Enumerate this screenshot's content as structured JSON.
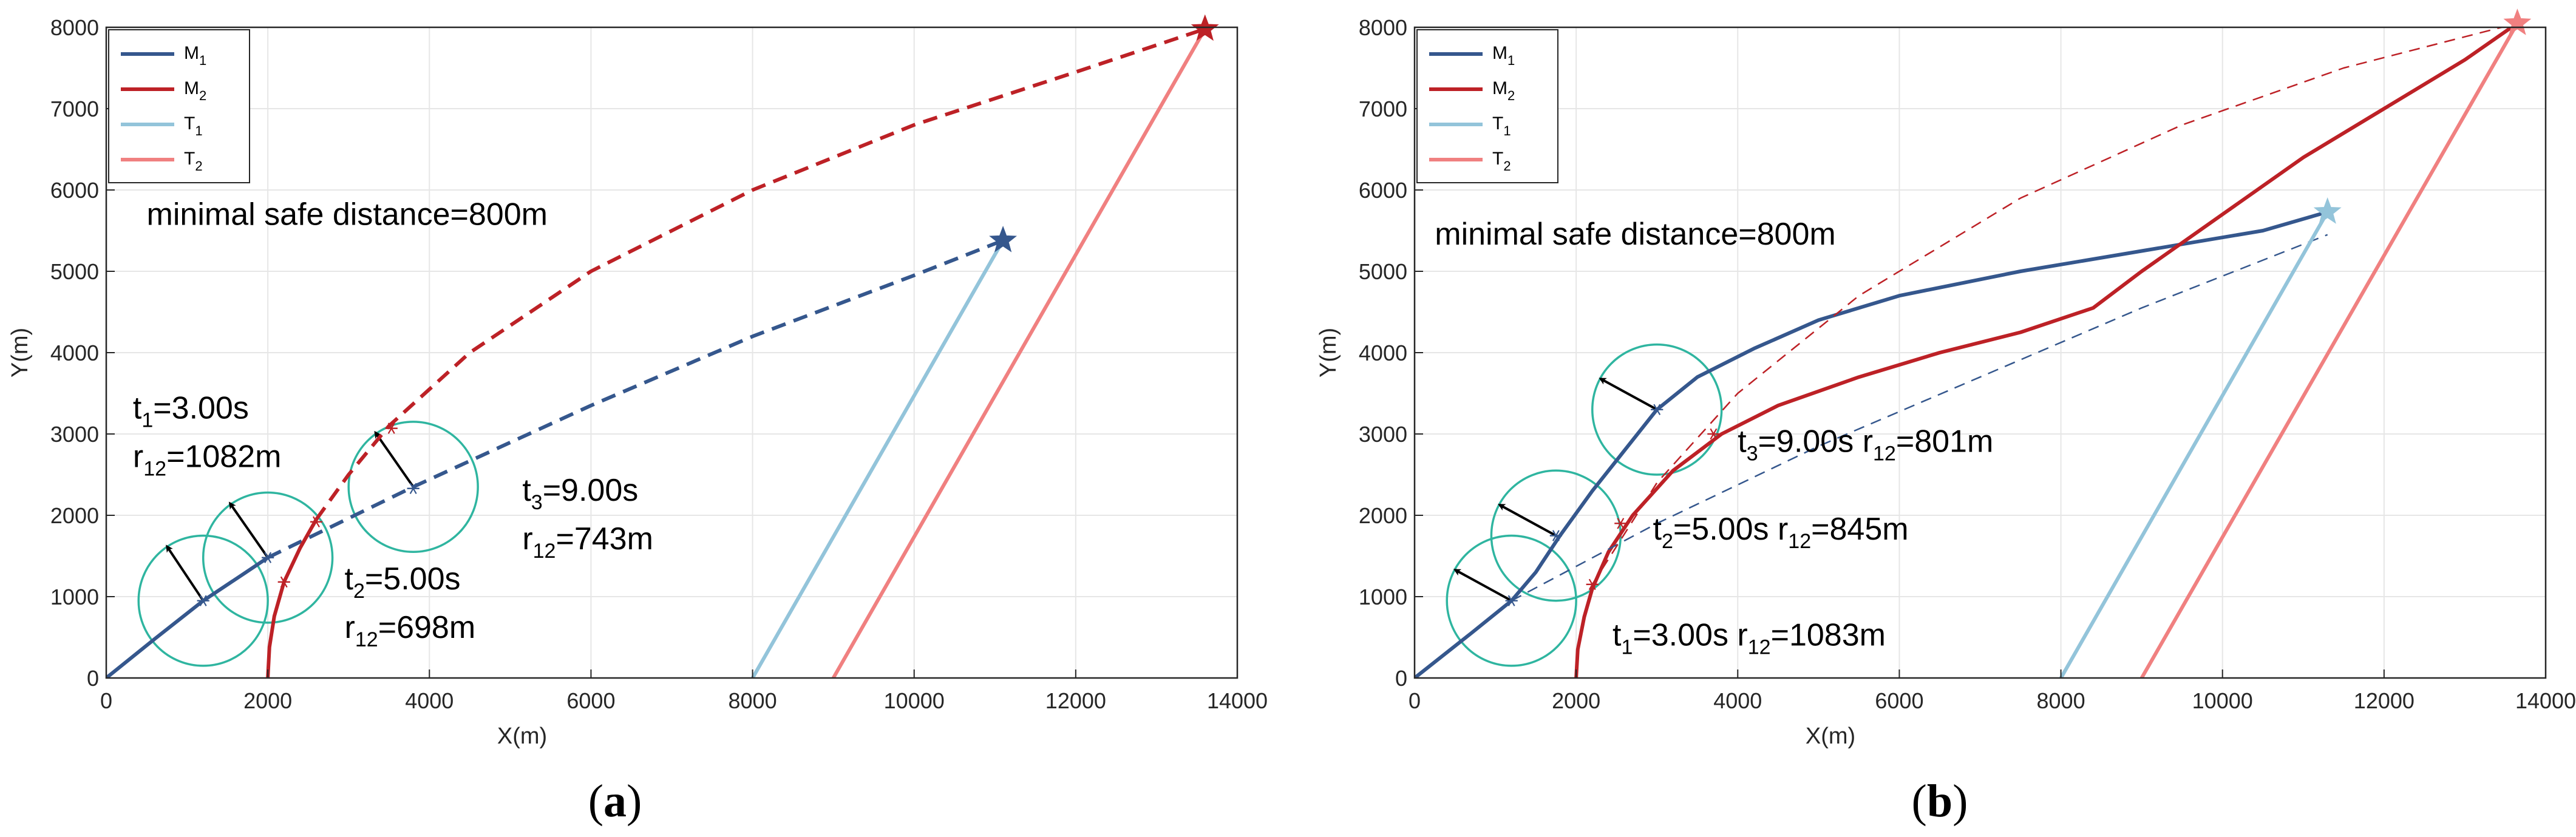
{
  "colors": {
    "M1": "#35578d",
    "M2": "#bd2126",
    "T1": "#93c4da",
    "T2": "#f08080",
    "circle": "#2fb5a0",
    "arrow": "#000000",
    "grid": "#e6e6e6",
    "axis": "#262626"
  },
  "chart_data": [
    {
      "type": "line",
      "panel_label": "(a)",
      "xlabel": "X(m)",
      "ylabel": "Y(m)",
      "xlim": [
        0,
        14000
      ],
      "ylim": [
        0,
        8000
      ],
      "xticks": [
        0,
        2000,
        4000,
        6000,
        8000,
        10000,
        12000,
        14000
      ],
      "yticks": [
        0,
        1000,
        2000,
        3000,
        4000,
        5000,
        6000,
        7000,
        8000
      ],
      "grid": true,
      "legend": {
        "position": "top-left",
        "entries": [
          {
            "base": "M",
            "sub": "1",
            "series": "M1"
          },
          {
            "base": "M",
            "sub": "2",
            "series": "M2"
          },
          {
            "base": "T",
            "sub": "1",
            "series": "T1"
          },
          {
            "base": "T",
            "sub": "2",
            "series": "T2"
          }
        ]
      },
      "series": [
        {
          "name": "M1",
          "style": "solid",
          "points": [
            [
              0,
              0
            ],
            [
              600,
              480
            ],
            [
              1200,
              950
            ],
            [
              1700,
              1280
            ],
            [
              2000,
              1480
            ]
          ]
        },
        {
          "name": "M1",
          "style": "dashed",
          "points": [
            [
              2000,
              1480
            ],
            [
              3800,
              2350
            ],
            [
              6000,
              3350
            ],
            [
              8000,
              4200
            ],
            [
              10000,
              4950
            ],
            [
              11100,
              5380
            ]
          ]
        },
        {
          "name": "M2",
          "style": "solid",
          "points": [
            [
              2000,
              0
            ],
            [
              2020,
              380
            ],
            [
              2080,
              760
            ],
            [
              2200,
              1180
            ],
            [
              2400,
              1600
            ],
            [
              2600,
              1950
            ]
          ]
        },
        {
          "name": "M2",
          "style": "dashed",
          "points": [
            [
              2600,
              1950
            ],
            [
              3000,
              2500
            ],
            [
              3500,
              3100
            ],
            [
              4500,
              4000
            ],
            [
              6000,
              5000
            ],
            [
              8000,
              6000
            ],
            [
              10000,
              6800
            ],
            [
              12000,
              7450
            ],
            [
              13600,
              7980
            ]
          ]
        },
        {
          "name": "T1",
          "style": "solid",
          "points": [
            [
              8000,
              0
            ],
            [
              11100,
              5380
            ]
          ]
        },
        {
          "name": "T2",
          "style": "solid",
          "points": [
            [
              9000,
              0
            ],
            [
              13600,
              7980
            ]
          ]
        }
      ],
      "end_markers": [
        {
          "series": "M1",
          "x": 11100,
          "y": 5380
        },
        {
          "series": "M2",
          "x": 13600,
          "y": 7980
        }
      ],
      "star_markers": [
        {
          "series": "M1",
          "x": 1200,
          "y": 950
        },
        {
          "series": "M2",
          "x": 2200,
          "y": 1180
        },
        {
          "series": "M1",
          "x": 2000,
          "y": 1480
        },
        {
          "series": "M2",
          "x": 2600,
          "y": 1920
        },
        {
          "series": "M1",
          "x": 3800,
          "y": 2330
        },
        {
          "series": "M2",
          "x": 3530,
          "y": 3070
        }
      ],
      "safety_circles": [
        {
          "cx": 1200,
          "cy": 950,
          "r": 800,
          "arrow_to": [
            750,
            1620
          ]
        },
        {
          "cx": 2000,
          "cy": 1480,
          "r": 800,
          "arrow_to": [
            1530,
            2150
          ]
        },
        {
          "cx": 3800,
          "cy": 2350,
          "r": 800,
          "arrow_to": [
            3330,
            3020
          ]
        }
      ],
      "title_annotation": "minimal safe distance=800m",
      "title_annotation_pos": [
        500,
        5570
      ],
      "annotations": [
        {
          "x": 330,
          "y": 3190,
          "t": "t",
          "t_sub": "1",
          "t_val": "=3.00s",
          "r": "r",
          "r_sub": "12",
          "r_val": "=1082m",
          "layout": "two-line"
        },
        {
          "x": 2950,
          "y": 1090,
          "t": "t",
          "t_sub": "2",
          "t_val": "=5.00s",
          "r": "r",
          "r_sub": "12",
          "r_val": "=698m",
          "layout": "two-line"
        },
        {
          "x": 5150,
          "y": 2180,
          "t": "t",
          "t_sub": "3",
          "t_val": "=9.00s",
          "r": "r",
          "r_sub": "12",
          "r_val": "=743m",
          "layout": "two-line"
        }
      ]
    },
    {
      "type": "line",
      "panel_label": "(b)",
      "xlabel": "X(m)",
      "ylabel": "Y(m)",
      "xlim": [
        0,
        14000
      ],
      "ylim": [
        0,
        8000
      ],
      "xticks": [
        0,
        2000,
        4000,
        6000,
        8000,
        10000,
        12000,
        14000
      ],
      "yticks": [
        0,
        1000,
        2000,
        3000,
        4000,
        5000,
        6000,
        7000,
        8000
      ],
      "grid": true,
      "legend": {
        "position": "top-left",
        "entries": [
          {
            "base": "M",
            "sub": "1",
            "series": "M1"
          },
          {
            "base": "M",
            "sub": "2",
            "series": "M2"
          },
          {
            "base": "T",
            "sub": "1",
            "series": "T1"
          },
          {
            "base": "T",
            "sub": "2",
            "series": "T2"
          }
        ]
      },
      "series": [
        {
          "name": "M1",
          "style": "solid",
          "points": [
            [
              0,
              0
            ],
            [
              700,
              550
            ],
            [
              1200,
              950
            ],
            [
              1500,
              1300
            ],
            [
              1800,
              1750
            ],
            [
              2200,
              2300
            ],
            [
              2600,
              2800
            ],
            [
              3000,
              3300
            ],
            [
              3500,
              3700
            ],
            [
              4200,
              4050
            ],
            [
              5000,
              4400
            ],
            [
              6000,
              4700
            ],
            [
              7500,
              5000
            ],
            [
              9000,
              5250
            ],
            [
              10500,
              5500
            ],
            [
              11300,
              5730
            ]
          ]
        },
        {
          "name": "M2",
          "style": "solid",
          "points": [
            [
              2000,
              0
            ],
            [
              2020,
              350
            ],
            [
              2100,
              750
            ],
            [
              2200,
              1100
            ],
            [
              2400,
              1550
            ],
            [
              2700,
              2000
            ],
            [
              3200,
              2550
            ],
            [
              3800,
              3000
            ],
            [
              4500,
              3350
            ],
            [
              5500,
              3700
            ],
            [
              6500,
              4000
            ],
            [
              7500,
              4250
            ],
            [
              8400,
              4550
            ],
            [
              9000,
              5000
            ],
            [
              10000,
              5700
            ],
            [
              11000,
              6400
            ],
            [
              12000,
              7000
            ],
            [
              13000,
              7600
            ],
            [
              13650,
              8050
            ]
          ]
        },
        {
          "name": "M1",
          "style": "dashed-thin",
          "points": [
            [
              1200,
              950
            ],
            [
              3000,
              1900
            ],
            [
              5000,
              2850
            ],
            [
              7000,
              3700
            ],
            [
              9000,
              4550
            ],
            [
              11300,
              5450
            ]
          ]
        },
        {
          "name": "M2",
          "style": "dashed-thin",
          "points": [
            [
              2200,
              1150
            ],
            [
              3000,
              2400
            ],
            [
              4000,
              3500
            ],
            [
              5500,
              4700
            ],
            [
              7500,
              5900
            ],
            [
              9500,
              6800
            ],
            [
              11500,
              7500
            ],
            [
              13650,
              8050
            ]
          ]
        },
        {
          "name": "T1",
          "style": "solid",
          "points": [
            [
              8000,
              0
            ],
            [
              11300,
              5730
            ]
          ]
        },
        {
          "name": "T2",
          "style": "solid",
          "points": [
            [
              9000,
              0
            ],
            [
              13650,
              8050
            ]
          ]
        }
      ],
      "end_markers": [
        {
          "series": "T1",
          "x": 11300,
          "y": 5730
        },
        {
          "series": "T2",
          "x": 13650,
          "y": 8050
        }
      ],
      "star_markers": [
        {
          "series": "M1",
          "x": 1200,
          "y": 950
        },
        {
          "series": "M2",
          "x": 2200,
          "y": 1150
        },
        {
          "series": "M1",
          "x": 1750,
          "y": 1750
        },
        {
          "series": "M2",
          "x": 2550,
          "y": 1900
        },
        {
          "series": "M1",
          "x": 3000,
          "y": 3300
        },
        {
          "series": "M2",
          "x": 3700,
          "y": 3000
        }
      ],
      "safety_circles": [
        {
          "cx": 1200,
          "cy": 950,
          "r": 800,
          "arrow_to": [
            500,
            1330
          ]
        },
        {
          "cx": 1750,
          "cy": 1750,
          "r": 800,
          "arrow_to": [
            1050,
            2130
          ]
        },
        {
          "cx": 3000,
          "cy": 3300,
          "r": 800,
          "arrow_to": [
            2300,
            3680
          ]
        }
      ],
      "title_annotation": "minimal safe distance=800m",
      "title_annotation_pos": [
        250,
        5330
      ],
      "annotations": [
        {
          "x": 2450,
          "y": 400,
          "t": "t",
          "t_sub": "1",
          "t_val": "=3.00s",
          "r": "r",
          "r_sub": "12",
          "r_val": "=1083m",
          "layout": "one-line"
        },
        {
          "x": 2950,
          "y": 1700,
          "t": "t",
          "t_sub": "2",
          "t_val": "=5.00s",
          "r": "r",
          "r_sub": "12",
          "r_val": "=845m",
          "layout": "one-line"
        },
        {
          "x": 4000,
          "y": 2780,
          "t": "t",
          "t_sub": "3",
          "t_val": "=9.00s",
          "r": "r",
          "r_sub": "12",
          "r_val": "=801m",
          "layout": "one-line"
        }
      ]
    }
  ]
}
